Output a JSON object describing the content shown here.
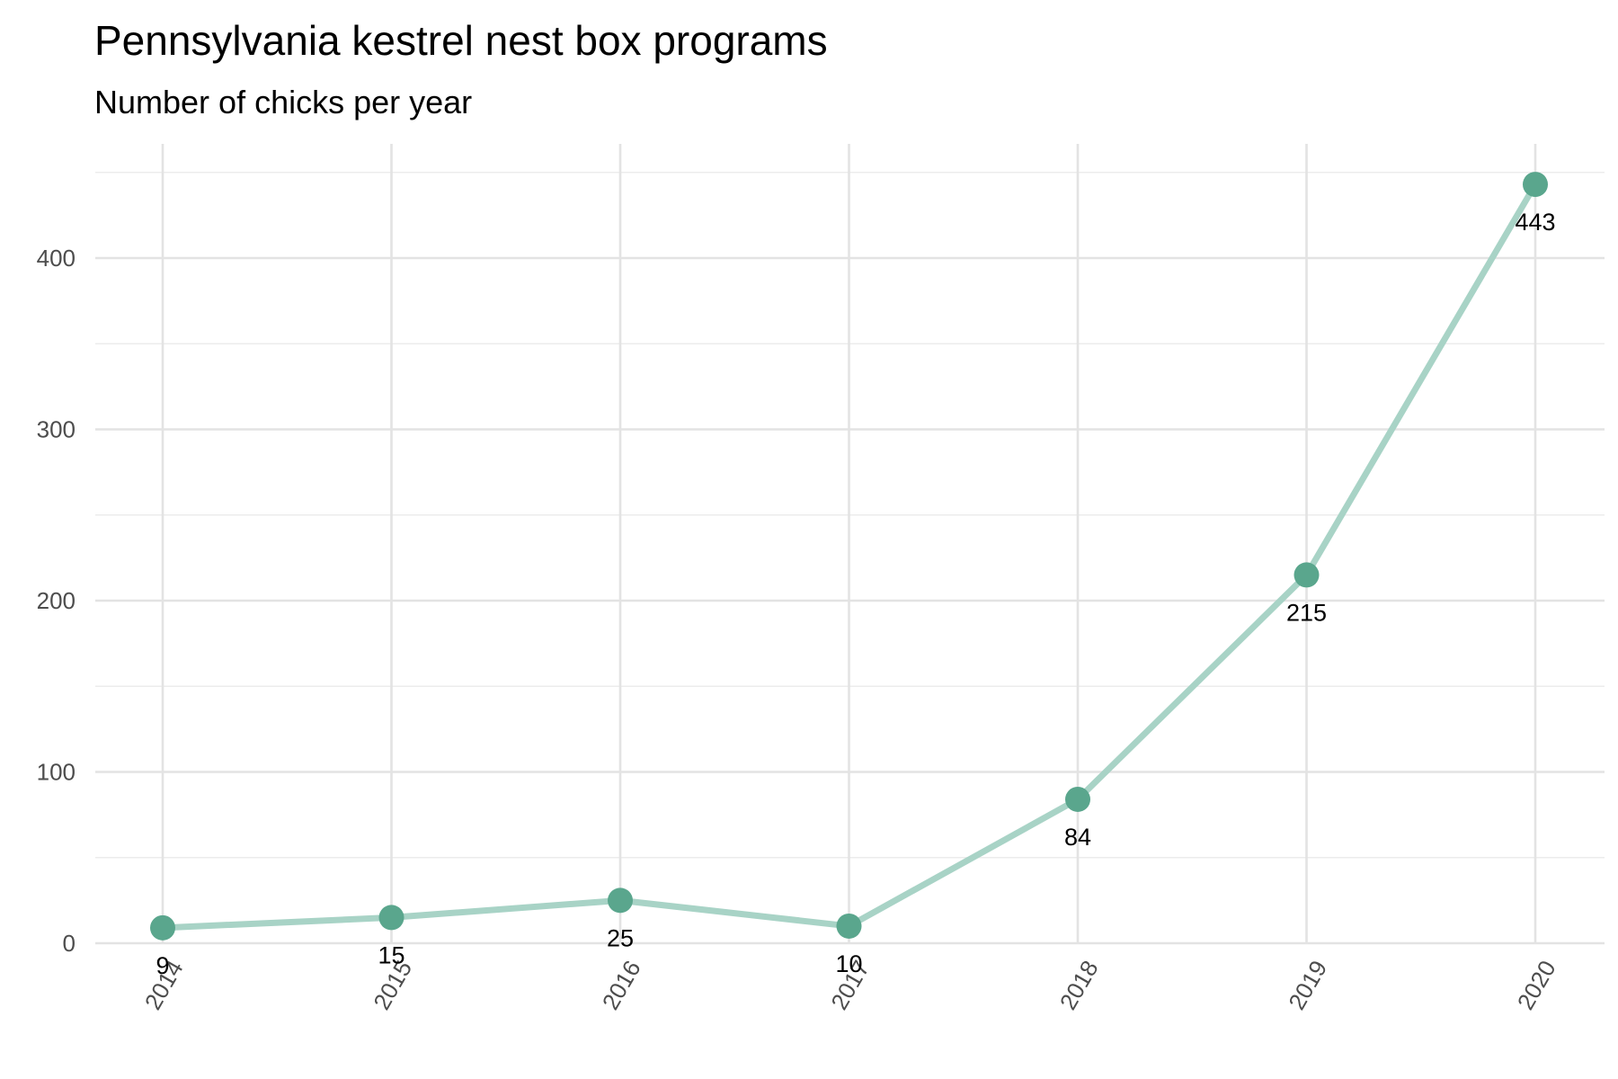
{
  "chart_data": {
    "type": "line",
    "title": "Pennsylvania kestrel nest box programs",
    "subtitle": "Number of chicks per year",
    "xlabel": "",
    "ylabel": "",
    "categories": [
      "2014",
      "2015",
      "2016",
      "2017",
      "2018",
      "2019",
      "2020"
    ],
    "values": [
      9,
      15,
      25,
      10,
      84,
      215,
      443
    ],
    "data_labels": [
      "9",
      "15",
      "25",
      "10",
      "84",
      "215",
      "443"
    ],
    "ylim": [
      0,
      450
    ],
    "yticks": [
      0,
      100,
      200,
      300,
      400
    ],
    "ytick_labels": [
      "0",
      "100",
      "200",
      "300",
      "400"
    ],
    "grid": true,
    "legend": "none",
    "colors": {
      "line": "#a8d3c6",
      "point": "#5aa68d",
      "grid": "#e3e3e3"
    }
  }
}
